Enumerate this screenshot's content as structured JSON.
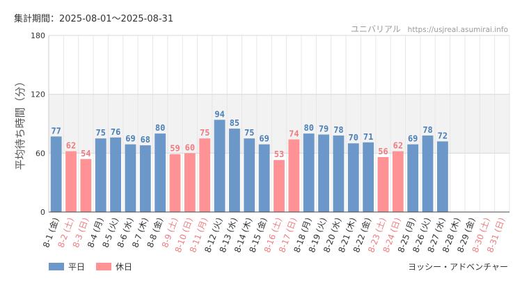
{
  "header": {
    "period": "集計期間：2025-08-01～2025-08-31",
    "site_name": "ユニバリアル",
    "site_url": "https://usjreal.asumirai.info"
  },
  "colors": {
    "weekday": "#6b98c8",
    "holiday": "#ff9295",
    "weekday_label": "#4a7fb8",
    "holiday_label": "#f07b80",
    "band": "#f2f2f2",
    "grid": "#e6e6e6"
  },
  "legend": {
    "weekday": "平日",
    "holiday": "休日"
  },
  "attribution": "ヨッシー・アドベンチャー",
  "chart_data": {
    "type": "bar",
    "ylabel": "平均待ち時間（分）",
    "ylim": [
      0,
      180
    ],
    "yticks": [
      0,
      60,
      120,
      180
    ],
    "band": [
      60,
      120
    ],
    "grid": true,
    "legend_position": "bottom-left",
    "categories": [
      "8-1 (金)",
      "8-2 (土)",
      "8-3 (日)",
      "8-4 (月)",
      "8-5 (火)",
      "8-6 (水)",
      "8-7 (木)",
      "8-8 (金)",
      "8-9 (土)",
      "8-10 (日)",
      "8-11 (月)",
      "8-12 (火)",
      "8-13 (水)",
      "8-14 (木)",
      "8-15 (金)",
      "8-16 (土)",
      "8-17 (日)",
      "8-18 (月)",
      "8-19 (火)",
      "8-20 (水)",
      "8-21 (木)",
      "8-22 (金)",
      "8-23 (土)",
      "8-24 (日)",
      "8-25 (月)",
      "8-26 (火)",
      "8-27 (水)",
      "8-28 (木)",
      "8-29 (金)",
      "8-30 (土)",
      "8-31 (日)"
    ],
    "values": [
      77,
      62,
      54,
      75,
      76,
      69,
      68,
      80,
      59,
      60,
      75,
      94,
      85,
      75,
      69,
      53,
      74,
      80,
      79,
      78,
      70,
      71,
      56,
      62,
      69,
      78,
      72,
      null,
      null,
      null,
      null
    ],
    "day_type": [
      "weekday",
      "holiday",
      "holiday",
      "weekday",
      "weekday",
      "weekday",
      "weekday",
      "weekday",
      "holiday",
      "holiday",
      "holiday",
      "weekday",
      "weekday",
      "weekday",
      "weekday",
      "holiday",
      "holiday",
      "weekday",
      "weekday",
      "weekday",
      "weekday",
      "weekday",
      "holiday",
      "holiday",
      "weekday",
      "weekday",
      "weekday",
      "weekday",
      "weekday",
      "holiday",
      "holiday"
    ]
  }
}
